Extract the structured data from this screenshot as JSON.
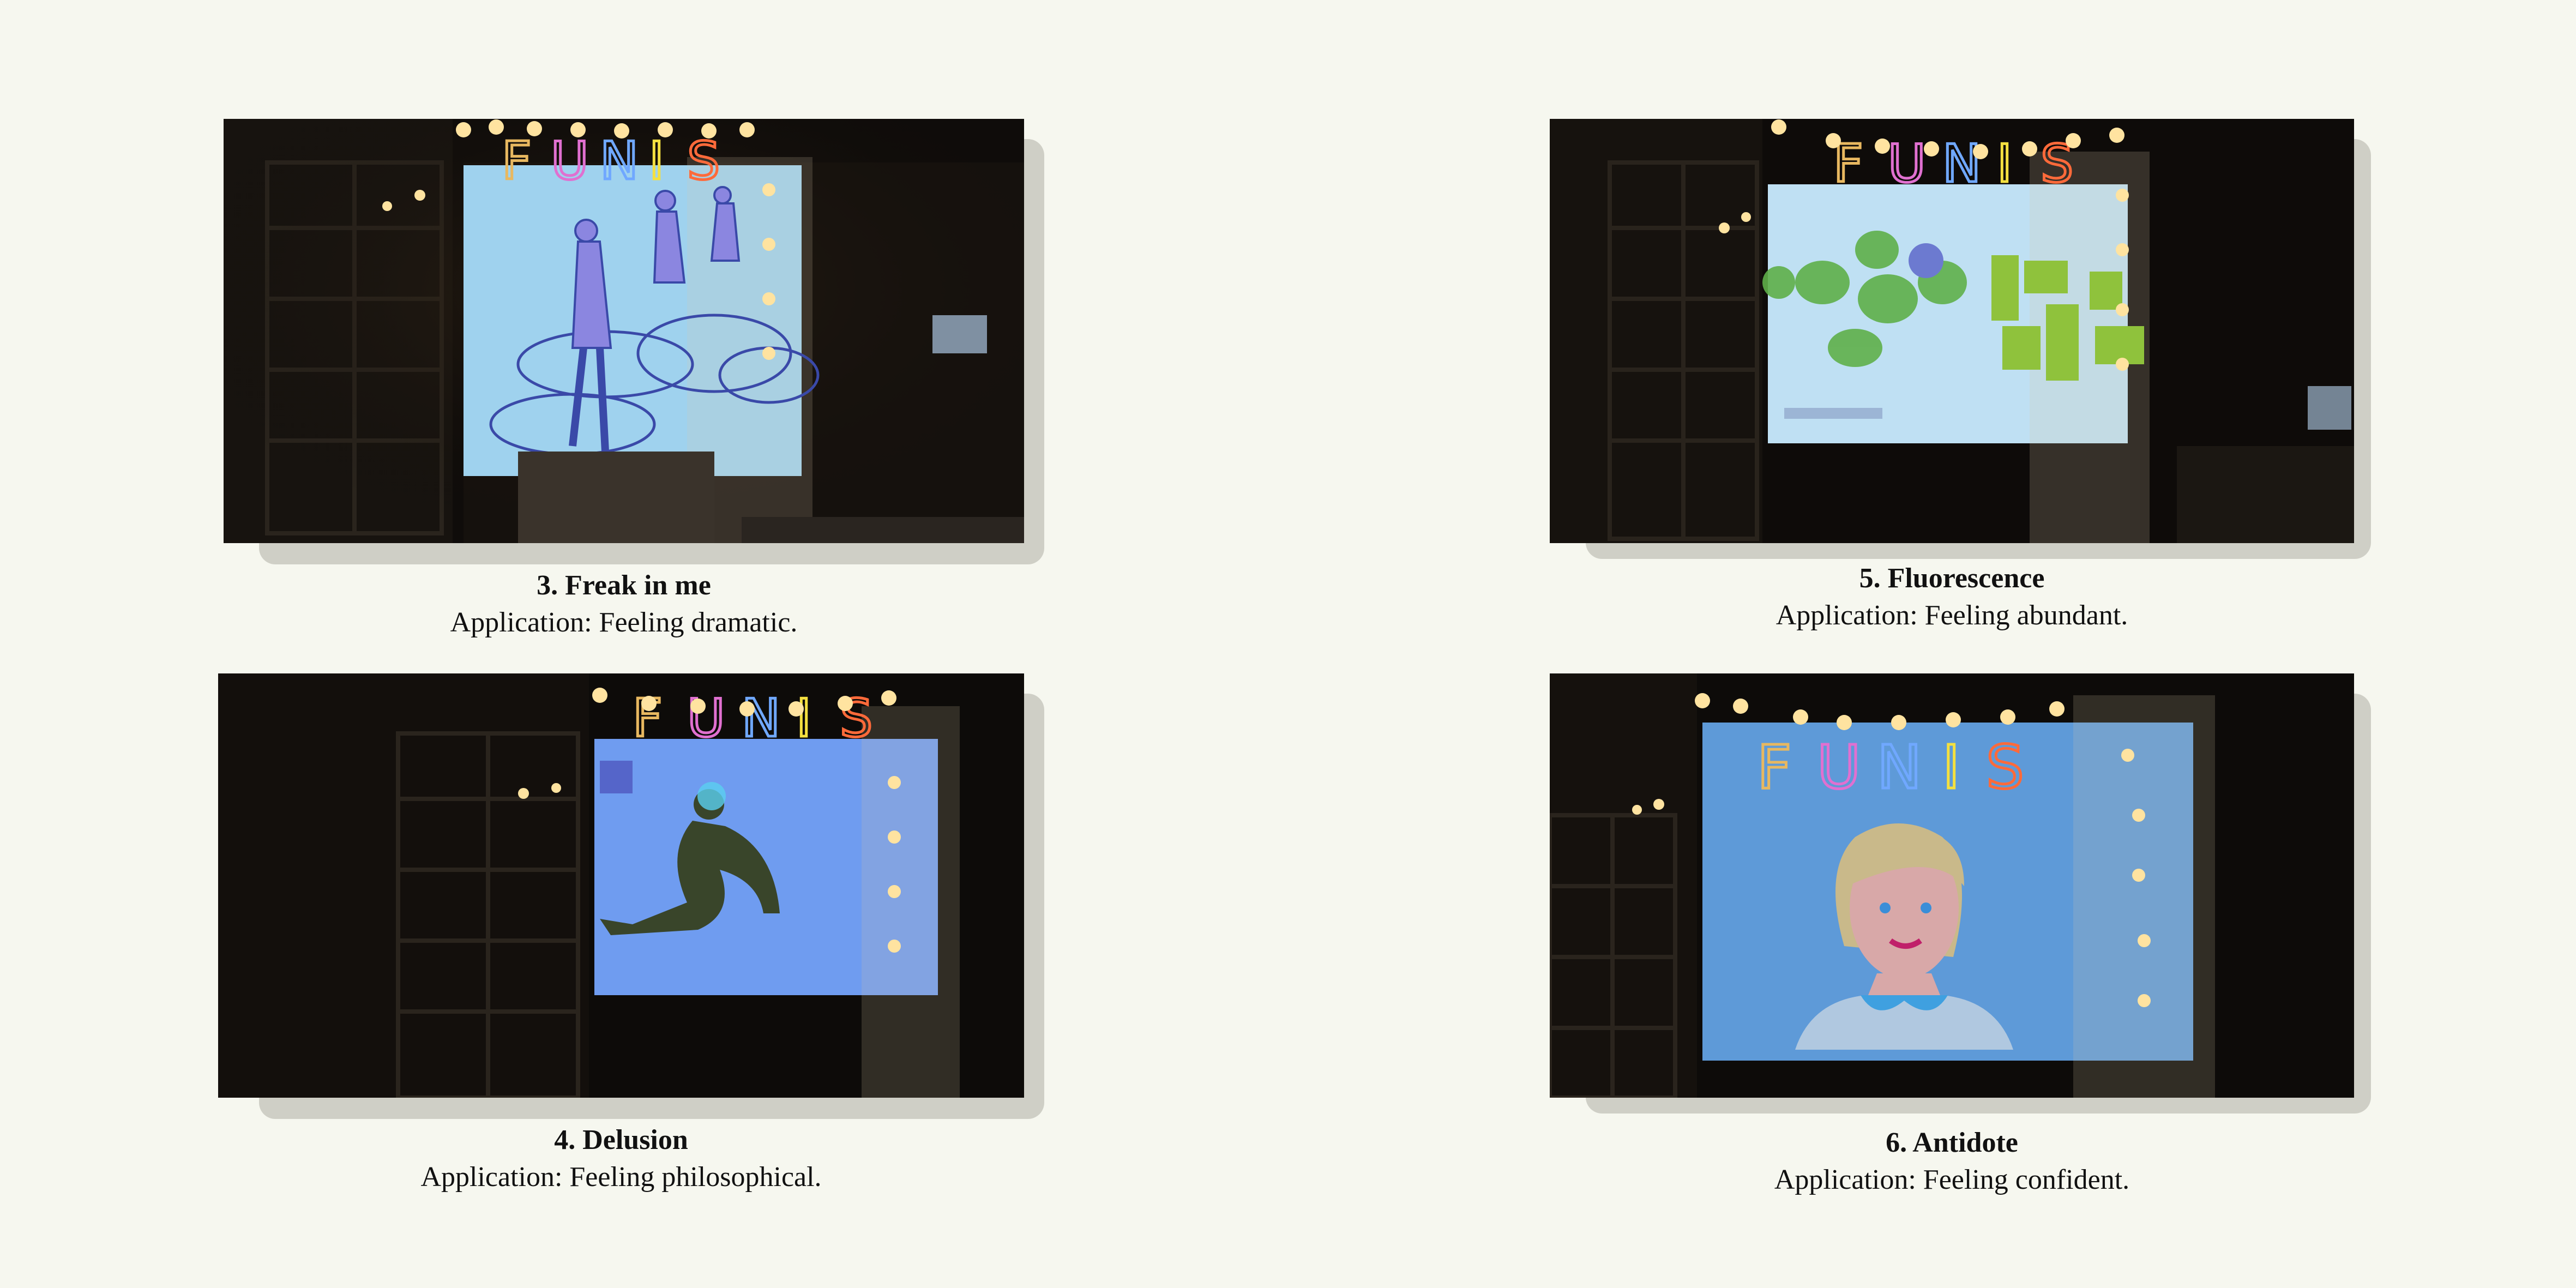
{
  "panels": [
    {
      "title": "3. Freak in me",
      "application": "Application: Feeling dramatic.",
      "screen_color": "#9fd2ee",
      "scene": "angels-on-clouds"
    },
    {
      "title": "5. Fluorescence",
      "application": "Application: Feeling abundant.",
      "screen_color": "#bfe0f3",
      "scene": "green-plants"
    },
    {
      "title": "4. Delusion",
      "application": "Application: Feeling philosophical.",
      "screen_color": "#6f9cf0",
      "scene": "seated-figure"
    },
    {
      "title": "6. Antidote",
      "application": "Application: Feeling confident.",
      "screen_color": "#5e9ad8",
      "scene": "smiling-woman"
    }
  ],
  "sign_text": "FUNIS"
}
